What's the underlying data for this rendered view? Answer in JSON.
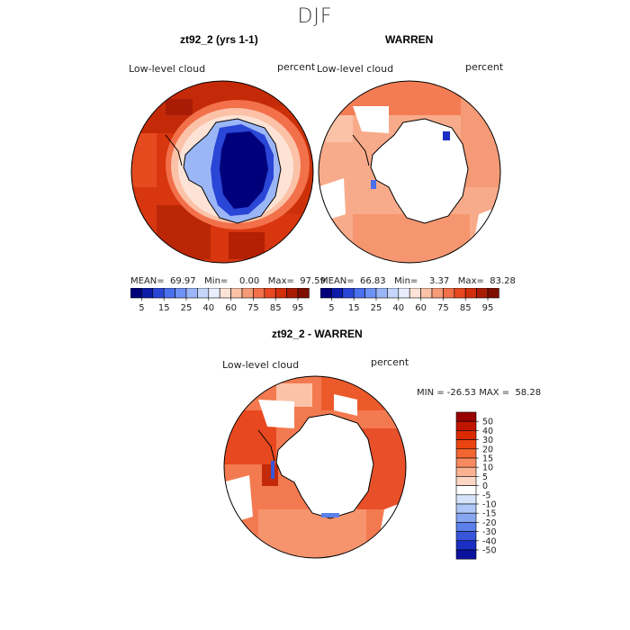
{
  "figure": {
    "title": "DJF"
  },
  "panel_left": {
    "title": "zt92_2 (yrs 1-1)",
    "variable": "Low-level cloud",
    "units": "percent",
    "stats": "MEAN=  69.97   Min=    0.00   Max=  97.59"
  },
  "panel_right": {
    "title": "WARREN",
    "variable": "Low-level cloud",
    "units": "percent",
    "stats": "MEAN=  66.83   Min=    3.37   Max=  83.28"
  },
  "top_colorbar": {
    "labels": [
      "5",
      "15",
      "25",
      "40",
      "60",
      "75",
      "85",
      "95"
    ],
    "colors": [
      "#00007a",
      "#0c1ca8",
      "#2a46d6",
      "#4a70ee",
      "#6e92f4",
      "#9bb6f7",
      "#c4d6fa",
      "#e8eefc",
      "#fde3d6",
      "#fbc2a8",
      "#f79a77",
      "#f2704a",
      "#e8481f",
      "#d22f0c",
      "#a81c06",
      "#7e0e00"
    ]
  },
  "panel_diff": {
    "title": "zt92_2 - WARREN",
    "variable": "Low-level cloud",
    "units": "percent",
    "stats": "MIN = -26.53 MAX =  58.28"
  },
  "diff_colorbar": {
    "labels": [
      "50",
      "40",
      "30",
      "20",
      "15",
      "10",
      "5",
      "0",
      "-5",
      "-10",
      "-15",
      "-20",
      "-30",
      "-40",
      "-50"
    ],
    "colors": [
      "#990000",
      "#c21500",
      "#dc2a00",
      "#ec4410",
      "#f36632",
      "#f78a60",
      "#fbb291",
      "#fdd7c3",
      "#ffffff",
      "#d6e4fb",
      "#aec7f6",
      "#86a6f0",
      "#5c80ea",
      "#3656dc",
      "#1a2fc4",
      "#0a129e"
    ]
  }
}
